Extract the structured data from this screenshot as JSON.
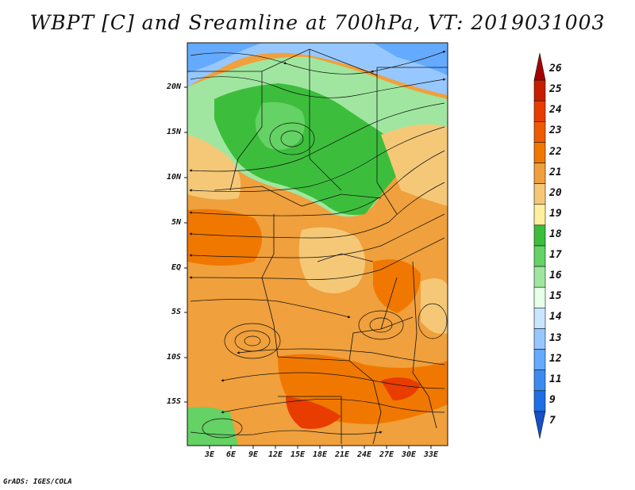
{
  "title": "WBPT [C] and Sreamline at 700hPa, VT: 2019031003",
  "credit": "GrADS: IGES/COLA",
  "lat_labels": [
    "20N",
    "15N",
    "10N",
    "5N",
    "EQ",
    "5S",
    "10S",
    "15S"
  ],
  "lon_labels": [
    "3E",
    "6E",
    "9E",
    "12E",
    "15E",
    "18E",
    "21E",
    "24E",
    "27E",
    "30E",
    "33E"
  ],
  "colorbar": {
    "levels": [
      "26",
      "25",
      "24",
      "23",
      "22",
      "21",
      "20",
      "19",
      "18",
      "17",
      "16",
      "15",
      "14",
      "13",
      "12",
      "11",
      "9",
      "7"
    ],
    "colors": [
      "#a50000",
      "#c81e00",
      "#e83c00",
      "#f05a00",
      "#f07800",
      "#f0a03c",
      "#f5c878",
      "#fff0a0",
      "#3cbe3c",
      "#64d264",
      "#a0e6a0",
      "#e6ffe6",
      "#c8e6ff",
      "#96c8ff",
      "#64aaff",
      "#3c8cf0",
      "#1e6ee6",
      "#1450c8"
    ]
  }
}
